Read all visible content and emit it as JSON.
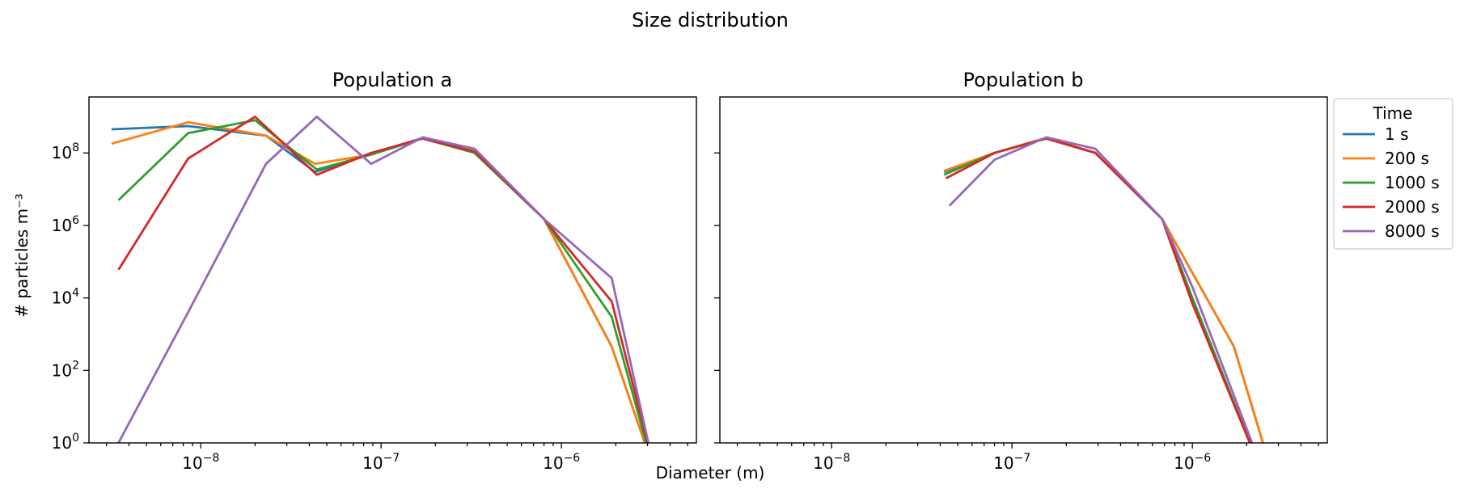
{
  "chart_data": {
    "type": "line",
    "title": "Size distribution",
    "xlabel": "Diameter (m)",
    "ylabel": "# particles m⁻³",
    "xscale": "log",
    "yscale": "log",
    "xlim": [
      2.4e-09,
      5.6e-06
    ],
    "ylim": [
      1,
      3500000000.0
    ],
    "grid": false,
    "legend": {
      "title": "Time",
      "placement": "outside-right-top",
      "entries": [
        "1 s",
        "200 s",
        "1000 s",
        "2000 s",
        "8000 s"
      ]
    },
    "x_ticks": [
      {
        "value": 1e-08,
        "base": "10",
        "exp": "−8"
      },
      {
        "value": 1e-07,
        "base": "10",
        "exp": "−7"
      },
      {
        "value": 1e-06,
        "base": "10",
        "exp": "−6"
      }
    ],
    "y_ticks": [
      {
        "value": 1,
        "base": "10",
        "exp": "0"
      },
      {
        "value": 100,
        "base": "10",
        "exp": "2"
      },
      {
        "value": 10000,
        "base": "10",
        "exp": "4"
      },
      {
        "value": 1000000,
        "base": "10",
        "exp": "6"
      },
      {
        "value": 100000000,
        "base": "10",
        "exp": "8"
      }
    ],
    "panels": [
      {
        "title": "Population a",
        "series": [
          {
            "name": "1 s",
            "color": "#1f77b4",
            "x": [
              3.2e-09,
              8.5e-09,
              2.3e-08,
              4.3e-08,
              8.8e-08,
              1.7e-07,
              3.3e-07,
              8e-07,
              1.9e-06,
              3.15e-06
            ],
            "y": [
              450000000.0,
              550000000.0,
              300000000.0,
              30000000.0,
              95000000.0,
              260000000.0,
              100000000.0,
              1500000.0,
              450,
              0.3
            ]
          },
          {
            "name": "200 s",
            "color": "#ff7f0e",
            "x": [
              3.2e-09,
              8.5e-09,
              2.3e-08,
              4.3e-08,
              8.8e-08,
              1.7e-07,
              3.3e-07,
              8e-07,
              1.9e-06,
              3.15e-06
            ],
            "y": [
              180000000.0,
              700000000.0,
              300000000.0,
              50000000.0,
              90000000.0,
              260000000.0,
              100000000.0,
              1500000.0,
              450,
              0.3
            ]
          },
          {
            "name": "1000 s",
            "color": "#2ca02c",
            "x": [
              3.5e-09,
              8.5e-09,
              2e-08,
              4.4e-08,
              8.8e-08,
              1.7e-07,
              3.3e-07,
              8e-07,
              1.9e-06,
              3.15e-06
            ],
            "y": [
              5000000.0,
              350000000.0,
              800000000.0,
              35000000.0,
              90000000.0,
              250000000.0,
              100000000.0,
              1500000.0,
              3000,
              0.3
            ]
          },
          {
            "name": "2000 s",
            "color": "#d62728",
            "x": [
              3.5e-09,
              8.5e-09,
              2e-08,
              4.4e-08,
              8.8e-08,
              1.7e-07,
              3.3e-07,
              8e-07,
              1.9e-06,
              3.2e-06
            ],
            "y": [
              60000.0,
              70000000.0,
              1000000000.0,
              25000000.0,
              100000000.0,
              250000000.0,
              110000000.0,
              1500000.0,
              8000,
              0.3
            ]
          },
          {
            "name": "8000 s",
            "color": "#9467bd",
            "x": [
              3.5e-09,
              8.5e-09,
              2.3e-08,
              4.4e-08,
              8.8e-08,
              1.7e-07,
              3.3e-07,
              8e-07,
              1.9e-06,
              3.2e-06
            ],
            "y": [
              1.0,
              4000,
              50000000.0,
              1000000000.0,
              50000000.0,
              270000000.0,
              130000000.0,
              1500000.0,
              35000.0,
              0.3
            ]
          }
        ]
      },
      {
        "title": "Population b",
        "series": [
          {
            "name": "1 s",
            "color": "#1f77b4",
            "x": [
              4.2e-08,
              8e-08,
              1.55e-07,
              2.9e-07,
              6.8e-07,
              1.7e-06,
              2.65e-06
            ],
            "y": [
              30000000.0,
              100000000.0,
              260000000.0,
              100000000.0,
              1500000.0,
              450,
              0.3
            ]
          },
          {
            "name": "200 s",
            "color": "#ff7f0e",
            "x": [
              4.2e-08,
              8e-08,
              1.55e-07,
              2.9e-07,
              6.8e-07,
              1.7e-06,
              2.65e-06
            ],
            "y": [
              32000000.0,
              100000000.0,
              260000000.0,
              100000000.0,
              1500000.0,
              450,
              0.3
            ]
          },
          {
            "name": "1000 s",
            "color": "#2ca02c",
            "x": [
              4.2e-08,
              8e-08,
              1.55e-07,
              2.9e-07,
              6.8e-07,
              1e-06,
              2.3e-06
            ],
            "y": [
              25000000.0,
              100000000.0,
              250000000.0,
              100000000.0,
              1500000.0,
              10000.0,
              0.3
            ]
          },
          {
            "name": "2000 s",
            "color": "#d62728",
            "x": [
              4.3e-08,
              8e-08,
              1.55e-07,
              2.9e-07,
              6.8e-07,
              1e-06,
              2.3e-06
            ],
            "y": [
              20000000.0,
              100000000.0,
              250000000.0,
              100000000.0,
              1500000.0,
              7000,
              0.3
            ]
          },
          {
            "name": "8000 s",
            "color": "#9467bd",
            "x": [
              4.5e-08,
              8e-08,
              1.55e-07,
              2.9e-07,
              6.8e-07,
              1e-06,
              2.35e-06
            ],
            "y": [
              3500000.0,
              65000000.0,
              270000000.0,
              130000000.0,
              1500000.0,
              20000.0,
              0.3
            ]
          }
        ]
      }
    ]
  }
}
